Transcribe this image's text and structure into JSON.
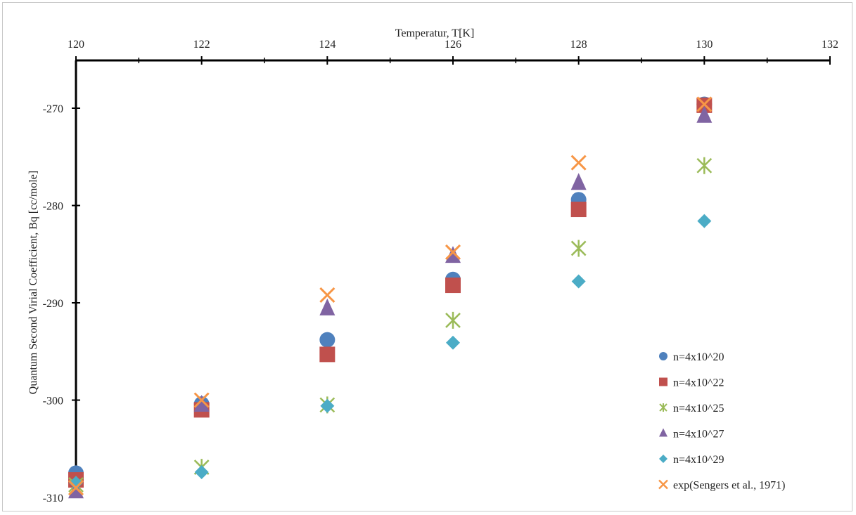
{
  "chart_data": {
    "type": "scatter",
    "title": "",
    "xlabel": "Temperatur, T[K]",
    "ylabel": "Quantum Second Virial Coefficient, Bq [cc/mole]",
    "xlim": [
      120,
      132
    ],
    "ylim": [
      -310,
      -265
    ],
    "x_axis_position": "top",
    "x_ticks": [
      "120",
      "122",
      "124",
      "126",
      "128",
      "130",
      "132"
    ],
    "y_ticks": [
      "-270",
      "-280",
      "-290",
      "-300",
      "-310"
    ],
    "grid": false,
    "legend_position": "bottom-right",
    "series": [
      {
        "name": "n=4x10^20",
        "marker": "circle",
        "color": "#4f81bd",
        "x": [
          120,
          122,
          124,
          126,
          128,
          130
        ],
        "y": [
          -307.5,
          -300.4,
          -293.8,
          -287.6,
          -279.4,
          -269.6
        ]
      },
      {
        "name": "n=4x10^22",
        "marker": "square",
        "color": "#c0504d",
        "x": [
          120,
          122,
          124,
          126,
          128,
          130
        ],
        "y": [
          -308.2,
          -301.0,
          -295.3,
          -288.2,
          -280.4,
          -269.7
        ]
      },
      {
        "name": "n=4x10^25",
        "marker": "star",
        "color": "#9bbb59",
        "x": [
          120,
          122,
          124,
          126,
          128,
          130
        ],
        "y": [
          -308.7,
          -306.9,
          -300.5,
          -291.8,
          -284.4,
          -275.9
        ]
      },
      {
        "name": "n=4x10^27",
        "marker": "triangle",
        "color": "#8064a2",
        "x": [
          120,
          122,
          124,
          126,
          128,
          130
        ],
        "y": [
          -309.3,
          -300.4,
          -290.5,
          -285.1,
          -277.6,
          -270.7
        ]
      },
      {
        "name": "n=4x10^29",
        "marker": "diamond",
        "color": "#4bacc6",
        "x": [
          120,
          122,
          124,
          126,
          128,
          130
        ],
        "y": [
          -308.5,
          -307.4,
          -300.6,
          -294.1,
          -287.8,
          -281.6
        ]
      },
      {
        "name": "exp(Sengers et al., 1971)",
        "marker": "x",
        "color": "#f79646",
        "x": [
          120,
          122,
          124,
          126,
          128,
          130
        ],
        "y": [
          -309.0,
          -300.0,
          -289.2,
          -284.8,
          -275.6,
          -269.6
        ]
      }
    ]
  }
}
